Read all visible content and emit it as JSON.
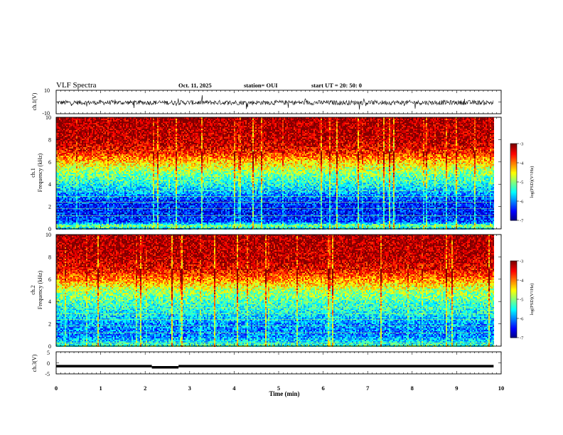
{
  "header": {
    "title": "VLF Spectra",
    "date": "Oct. 11, 2025",
    "station": "station= OUI",
    "start": "start UT = 20: 50: 0"
  },
  "colors": {
    "colormap": [
      "#00007f",
      "#0000ff",
      "#007fff",
      "#00ffff",
      "#7fff7f",
      "#ffff00",
      "#ff7f00",
      "#ff0000",
      "#7f0000"
    ]
  },
  "chart_data": [
    {
      "type": "line",
      "ylabel": "ch.1(V)",
      "ylim": [
        -10,
        10
      ],
      "yticks": [
        {
          "v": 10,
          "label": "10"
        },
        {
          "v": -10,
          "label": "-10"
        }
      ],
      "xlim": [
        0,
        10
      ],
      "mean": -0.5,
      "amplitude": 2
    },
    {
      "type": "heatmap",
      "ylabel": [
        "ch.1",
        "Frequency (kHz)"
      ],
      "ylim": [
        0,
        10
      ],
      "yticks": [
        {
          "v": 0,
          "label": "0"
        },
        {
          "v": 2,
          "label": "2"
        },
        {
          "v": 4,
          "label": "4"
        },
        {
          "v": 6,
          "label": "6"
        },
        {
          "v": 8,
          "label": "8"
        },
        {
          "v": 10,
          "label": "10"
        }
      ],
      "xlim": [
        0,
        10
      ],
      "data_end_min": 9.83,
      "colorbar": {
        "range": [
          -7,
          -3
        ],
        "ticks": [
          "-3",
          "-4",
          "-5",
          "-6",
          "-7"
        ],
        "label": "log(PSD)(V²/Hz)"
      },
      "freq_profile_logpsd": [
        {
          "f": 0.0,
          "v": -5.6
        },
        {
          "f": 0.3,
          "v": -5.0
        },
        {
          "f": 0.6,
          "v": -6.2
        },
        {
          "f": 1.5,
          "v": -6.4
        },
        {
          "f": 2.5,
          "v": -6.3
        },
        {
          "f": 3.3,
          "v": -5.8
        },
        {
          "f": 4.0,
          "v": -5.4
        },
        {
          "f": 5.0,
          "v": -5.0
        },
        {
          "f": 6.0,
          "v": -4.3
        },
        {
          "f": 7.0,
          "v": -3.5
        },
        {
          "f": 8.0,
          "v": -3.2
        },
        {
          "f": 10.0,
          "v": -3.1
        }
      ]
    },
    {
      "type": "heatmap",
      "ylabel": [
        "ch.2",
        "Frequency (kHz)"
      ],
      "ylim": [
        0,
        10
      ],
      "yticks": [
        {
          "v": 0,
          "label": "0"
        },
        {
          "v": 2,
          "label": "2"
        },
        {
          "v": 4,
          "label": "4"
        },
        {
          "v": 6,
          "label": "6"
        },
        {
          "v": 8,
          "label": "8"
        },
        {
          "v": 10,
          "label": "10"
        }
      ],
      "xlim": [
        0,
        10
      ],
      "data_end_min": 9.83,
      "colorbar": {
        "range": [
          -7,
          -3
        ],
        "ticks": [
          "-3",
          "-4",
          "-5",
          "-6",
          "-7"
        ],
        "label": "log(PSD)(V²/Hz)"
      },
      "freq_profile_logpsd": [
        {
          "f": 0.0,
          "v": -5.2
        },
        {
          "f": 0.4,
          "v": -5.6
        },
        {
          "f": 1.0,
          "v": -6.0
        },
        {
          "f": 2.0,
          "v": -5.9
        },
        {
          "f": 3.0,
          "v": -5.5
        },
        {
          "f": 4.0,
          "v": -5.2
        },
        {
          "f": 5.0,
          "v": -4.8
        },
        {
          "f": 6.0,
          "v": -4.0
        },
        {
          "f": 7.0,
          "v": -3.4
        },
        {
          "f": 8.0,
          "v": -3.2
        },
        {
          "f": 10.0,
          "v": -3.1
        }
      ]
    },
    {
      "type": "line",
      "ylabel": "ch.3(V)",
      "ylim": [
        -5,
        5
      ],
      "yticks": [
        {
          "v": 5,
          "label": "5"
        },
        {
          "v": 0,
          "label": "0"
        },
        {
          "v": -5,
          "label": "-5"
        }
      ],
      "xlim": [
        0,
        10
      ],
      "xlabel": "Time (min)",
      "xticks": [
        "0",
        "1",
        "2",
        "3",
        "4",
        "5",
        "6",
        "7",
        "8",
        "9",
        "10"
      ],
      "segments": [
        {
          "x": [
            0,
            2.15
          ],
          "y": -1.5
        },
        {
          "x": [
            2.15,
            2.75
          ],
          "y": -2.0
        },
        {
          "x": [
            2.75,
            9.83
          ],
          "y": -1.5
        }
      ]
    }
  ]
}
